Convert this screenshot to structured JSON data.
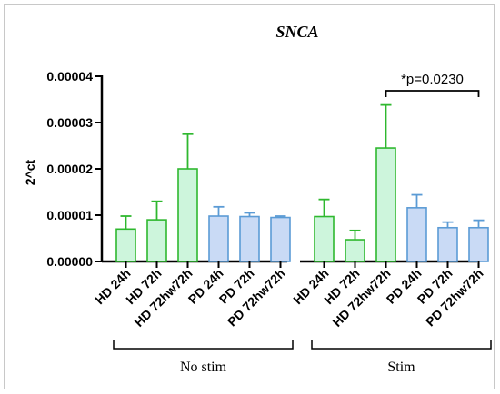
{
  "chart_data": {
    "type": "bar",
    "title": "SNCA",
    "ylabel": "2^ct",
    "xlabel": "",
    "ylim": [
      0,
      4e-05
    ],
    "yticks": [
      "0.00000",
      "0.00001",
      "0.00002",
      "0.00003",
      "0.00004"
    ],
    "colors": {
      "hd_stroke": "#2fb82f",
      "hd_fill": "#cdf5dc",
      "pd_stroke": "#5b9bd5",
      "pd_fill": "#c9daf5"
    },
    "groups": [
      {
        "name": "No stim",
        "bars": [
          {
            "label": "HD 24h",
            "value": 7e-06,
            "error": 2.8e-06,
            "kind": "hd"
          },
          {
            "label": "HD 72h",
            "value": 9e-06,
            "error": 4e-06,
            "kind": "hd"
          },
          {
            "label": "HD 72hw72h",
            "value": 2e-05,
            "error": 7.5e-06,
            "kind": "hd"
          },
          {
            "label": "PD 24h",
            "value": 9.8e-06,
            "error": 2e-06,
            "kind": "pd"
          },
          {
            "label": "PD 72h",
            "value": 9.7e-06,
            "error": 8e-07,
            "kind": "pd"
          },
          {
            "label": "PD 72hw72h",
            "value": 9.5e-06,
            "error": 3e-07,
            "kind": "pd"
          }
        ]
      },
      {
        "name": "Stim",
        "bars": [
          {
            "label": "HD 24h",
            "value": 9.7e-06,
            "error": 3.7e-06,
            "kind": "hd"
          },
          {
            "label": "HD 72h",
            "value": 4.7e-06,
            "error": 2e-06,
            "kind": "hd"
          },
          {
            "label": "HD 72hw72h",
            "value": 2.45e-05,
            "error": 9.3e-06,
            "kind": "hd"
          },
          {
            "label": "PD 24h",
            "value": 1.16e-05,
            "error": 2.8e-06,
            "kind": "pd"
          },
          {
            "label": "PD 72h",
            "value": 7.3e-06,
            "error": 1.2e-06,
            "kind": "pd"
          },
          {
            "label": "PD 72hw72h",
            "value": 7.3e-06,
            "error": 1.6e-06,
            "kind": "pd"
          }
        ]
      }
    ],
    "annotation": {
      "text": "*p=0.0230",
      "from": "Stim/HD 72hw72h",
      "to": "Stim/PD 72hw72h"
    }
  }
}
